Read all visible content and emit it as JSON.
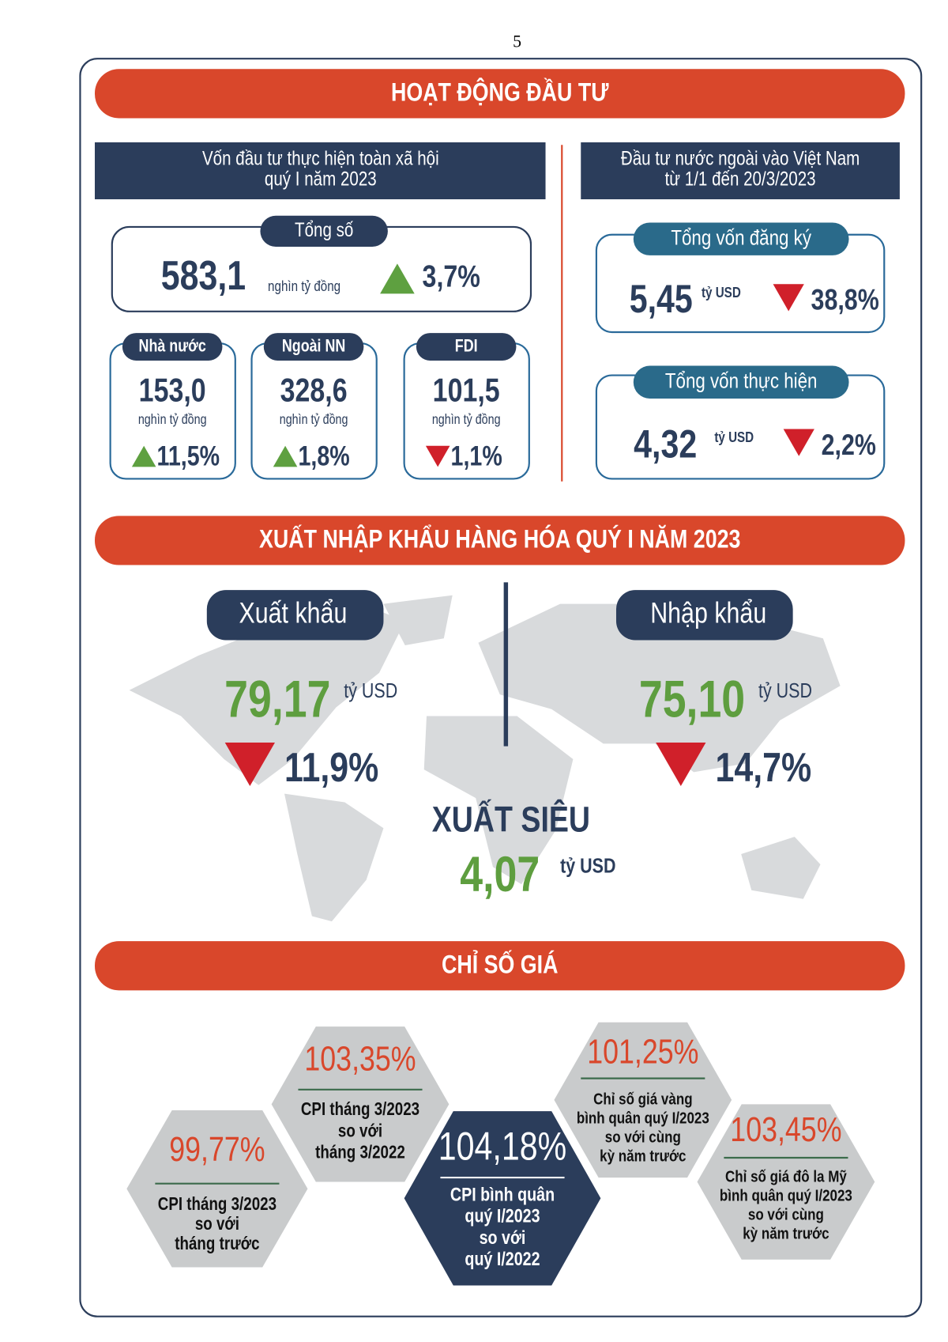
{
  "page_number": "5",
  "investment": {
    "title": "HOẠT ĐỘNG ĐẦU TƯ",
    "domestic": {
      "heading": [
        "Vốn đầu tư thực hiện toàn xã hội",
        "quý I năm 2023"
      ],
      "total": {
        "label": "Tổng số",
        "value": "583,1",
        "unit": "nghìn tỷ đồng",
        "change": "3,7%",
        "direction": "up"
      },
      "components": [
        {
          "label": "Nhà nước",
          "value": "153,0",
          "unit": "nghìn tỷ đồng",
          "change": "11,5%",
          "direction": "up"
        },
        {
          "label": "Ngoài NN",
          "value": "328,6",
          "unit": "nghìn tỷ đồng",
          "change": "1,8%",
          "direction": "up"
        },
        {
          "label": "FDI",
          "value": "101,5",
          "unit": "nghìn tỷ đồng",
          "change": "1,1%",
          "direction": "down"
        }
      ]
    },
    "foreign": {
      "heading": [
        "Đầu tư nước ngoài vào Việt Nam",
        "từ 1/1 đến 20/3/2023"
      ],
      "items": [
        {
          "label": "Tổng vốn đăng ký",
          "value": "5,45",
          "unit": "tỷ USD",
          "change": "38,8%",
          "direction": "down"
        },
        {
          "label": "Tổng vốn thực hiện",
          "value": "4,32",
          "unit": "tỷ USD",
          "change": "2,2%",
          "direction": "down"
        }
      ]
    }
  },
  "trade": {
    "title": "XUẤT NHẬP KHẨU HÀNG HÓA QUÝ I NĂM 2023",
    "export": {
      "label": "Xuất khẩu",
      "value": "79,17",
      "unit": "tỷ USD",
      "change": "11,9%",
      "direction": "down"
    },
    "import": {
      "label": "Nhập khẩu",
      "value": "75,10",
      "unit": "tỷ USD",
      "change": "14,7%",
      "direction": "down"
    },
    "surplus": {
      "label": "XUẤT SIÊU",
      "value": "4,07",
      "unit": "tỷ USD"
    }
  },
  "prices": {
    "title": "CHỈ SỐ GIÁ",
    "indices": [
      {
        "value": "99,77%",
        "caption": [
          "CPI tháng 3/2023",
          "so với",
          "tháng trước"
        ]
      },
      {
        "value": "103,35%",
        "caption": [
          "CPI tháng 3/2023",
          "so với",
          "tháng 3/2022"
        ]
      },
      {
        "value": "104,18%",
        "caption": [
          "CPI bình quân",
          "quý I/2023",
          "so với",
          "quý I/2022"
        ],
        "highlight": true
      },
      {
        "value": "101,25%",
        "caption": [
          "Chỉ số giá vàng",
          "bình quân quý I/2023",
          "so với cùng",
          "kỳ năm trước"
        ]
      },
      {
        "value": "103,45%",
        "caption": [
          "Chỉ số giá đô la Mỹ",
          "bình quân quý I/2023",
          "so với cùng",
          "kỳ năm trước"
        ]
      }
    ]
  }
}
